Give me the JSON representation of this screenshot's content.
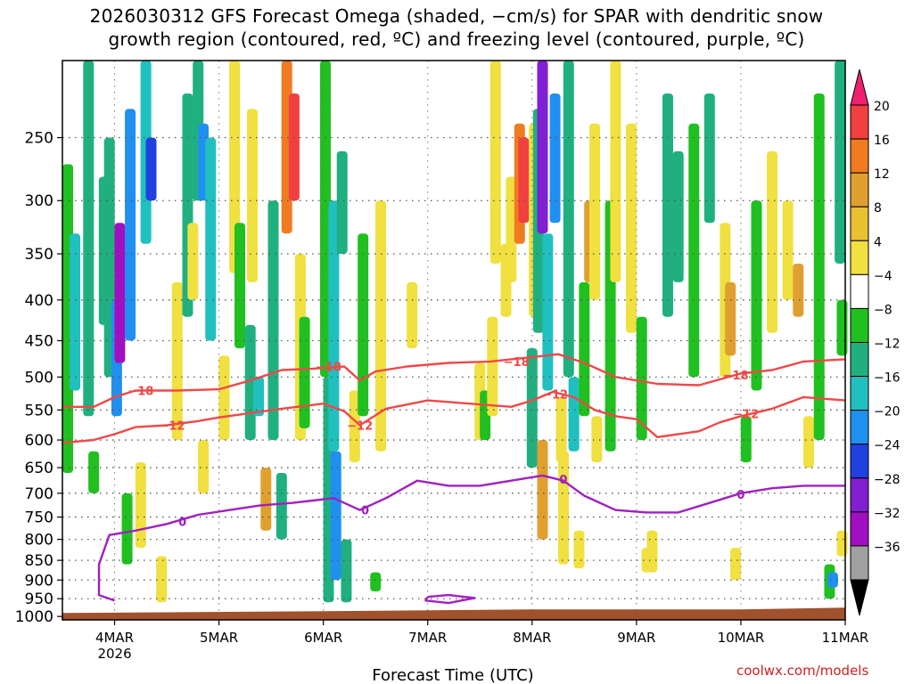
{
  "title": {
    "line1": "2026030312 GFS Forecast Omega (shaded, −cm/s) for SPAR with dendritic snow",
    "line2": "growth region (contoured, red, ºC) and freezing level (contoured, purple, ºC)"
  },
  "credit": "coolwx.com/models",
  "chart_data": {
    "type": "heatmap",
    "title": "2026030312 GFS Forecast Omega (shaded, −cm/s) for SPAR with dendritic snow growth region (contoured, red, ºC) and freezing level (contoured, purple, ºC)",
    "xlabel": "Forecast Time (UTC)",
    "ylabel": "",
    "x_ticks": [
      {
        "day": 4,
        "label": "4MAR",
        "sub": "2026"
      },
      {
        "day": 5,
        "label": "5MAR",
        "sub": ""
      },
      {
        "day": 6,
        "label": "6MAR",
        "sub": ""
      },
      {
        "day": 7,
        "label": "7MAR",
        "sub": ""
      },
      {
        "day": 8,
        "label": "8MAR",
        "sub": ""
      },
      {
        "day": 9,
        "label": "9MAR",
        "sub": ""
      },
      {
        "day": 10,
        "label": "10MAR",
        "sub": ""
      },
      {
        "day": 11,
        "label": "11MAR",
        "sub": ""
      }
    ],
    "xlim_days": [
      3.5,
      11.0
    ],
    "y_levels": [
      250,
      300,
      350,
      400,
      450,
      500,
      550,
      600,
      650,
      700,
      750,
      800,
      850,
      900,
      950,
      1000
    ],
    "ylim_hpa": [
      200,
      1010
    ],
    "colorbar": {
      "labels": [
        "20",
        "16",
        "12",
        "8",
        "4",
        "−4",
        "−8",
        "−12",
        "−16",
        "−20",
        "−24",
        "−28",
        "−32",
        "−36"
      ],
      "colors": [
        "#f02070",
        "#f04040",
        "#f07b20",
        "#e0a030",
        "#e8c030",
        "#f0e040",
        "#ffffff",
        "#20c020",
        "#20b080",
        "#20c0c0",
        "#2090f0",
        "#2040e0",
        "#8020d0",
        "#a010c0",
        "#a0a0a0",
        "#000000"
      ]
    },
    "series": [
      {
        "name": "-18 isotherm",
        "color": "#f04848",
        "label": "−18",
        "points": [
          [
            3.5,
            545
          ],
          [
            3.8,
            545
          ],
          [
            4.0,
            530
          ],
          [
            4.2,
            520
          ],
          [
            4.6,
            520
          ],
          [
            5.0,
            518
          ],
          [
            5.3,
            505
          ],
          [
            5.6,
            490
          ],
          [
            5.9,
            488
          ],
          [
            6.2,
            485
          ],
          [
            6.35,
            505
          ],
          [
            6.5,
            492
          ],
          [
            6.8,
            485
          ],
          [
            7.2,
            480
          ],
          [
            7.6,
            478
          ],
          [
            8.0,
            472
          ],
          [
            8.25,
            468
          ],
          [
            8.5,
            480
          ],
          [
            8.8,
            500
          ],
          [
            9.2,
            510
          ],
          [
            9.6,
            512
          ],
          [
            10.0,
            495
          ],
          [
            10.3,
            490
          ],
          [
            10.6,
            478
          ],
          [
            11.0,
            475
          ]
        ],
        "labels_at": [
          [
            4.25,
            520
          ],
          [
            6.05,
            485
          ],
          [
            7.85,
            478
          ],
          [
            9.95,
            497
          ]
        ]
      },
      {
        "name": "-12 isotherm",
        "color": "#f04848",
        "label": "−12",
        "points": [
          [
            3.5,
            605
          ],
          [
            3.8,
            600
          ],
          [
            4.0,
            590
          ],
          [
            4.2,
            578
          ],
          [
            4.5,
            575
          ],
          [
            4.8,
            568
          ],
          [
            5.0,
            562
          ],
          [
            5.3,
            555
          ],
          [
            5.6,
            548
          ],
          [
            6.0,
            540
          ],
          [
            6.2,
            552
          ],
          [
            6.35,
            575
          ],
          [
            6.6,
            548
          ],
          [
            7.0,
            535
          ],
          [
            7.4,
            540
          ],
          [
            7.8,
            545
          ],
          [
            8.0,
            535
          ],
          [
            8.2,
            522
          ],
          [
            8.4,
            530
          ],
          [
            8.6,
            550
          ],
          [
            8.8,
            560
          ],
          [
            9.0,
            565
          ],
          [
            9.2,
            595
          ],
          [
            9.4,
            590
          ],
          [
            9.6,
            585
          ],
          [
            9.8,
            570
          ],
          [
            10.0,
            560
          ],
          [
            10.3,
            548
          ],
          [
            10.6,
            530
          ],
          [
            11.0,
            535
          ]
        ],
        "labels_at": [
          [
            4.55,
            575
          ],
          [
            6.35,
            575
          ],
          [
            8.22,
            525
          ],
          [
            10.05,
            556
          ]
        ]
      },
      {
        "name": "0 (freezing level)",
        "color": "#a020c0",
        "label": "0",
        "points": [
          [
            4.0,
            955
          ],
          [
            3.85,
            940
          ],
          [
            3.85,
            860
          ],
          [
            3.95,
            790
          ],
          [
            4.2,
            780
          ],
          [
            4.5,
            765
          ],
          [
            4.8,
            745
          ],
          [
            5.1,
            735
          ],
          [
            5.4,
            725
          ],
          [
            5.7,
            720
          ],
          [
            5.9,
            715
          ],
          [
            6.1,
            710
          ],
          [
            6.35,
            735
          ],
          [
            6.6,
            710
          ],
          [
            6.9,
            675
          ],
          [
            7.2,
            685
          ],
          [
            7.5,
            685
          ],
          [
            7.8,
            675
          ],
          [
            8.1,
            665
          ],
          [
            8.3,
            675
          ],
          [
            8.5,
            705
          ],
          [
            8.8,
            735
          ],
          [
            9.1,
            740
          ],
          [
            9.4,
            740
          ],
          [
            9.7,
            720
          ],
          [
            10.0,
            700
          ],
          [
            10.3,
            690
          ],
          [
            10.6,
            685
          ],
          [
            11.0,
            685
          ]
        ],
        "labels_at": [
          [
            4.65,
            760
          ],
          [
            6.4,
            735
          ],
          [
            8.3,
            672
          ],
          [
            10.0,
            702
          ]
        ]
      },
      {
        "name": "0 (closed contour)",
        "color": "#a020c0",
        "label": "",
        "points": [
          [
            7.0,
            945
          ],
          [
            7.2,
            940
          ],
          [
            7.45,
            948
          ],
          [
            7.2,
            962
          ],
          [
            6.98,
            955
          ],
          [
            7.0,
            945
          ]
        ],
        "labels_at": []
      }
    ],
    "shading_cells": [
      {
        "day": 3.55,
        "p1": 270,
        "p2": 660,
        "v": -6
      },
      {
        "day": 3.62,
        "p1": 330,
        "p2": 520,
        "v": -12
      },
      {
        "day": 3.75,
        "p1": 200,
        "p2": 560,
        "v": -8
      },
      {
        "day": 3.8,
        "p1": 620,
        "p2": 700,
        "v": -6
      },
      {
        "day": 3.9,
        "p1": 280,
        "p2": 430,
        "v": -10
      },
      {
        "day": 3.95,
        "p1": 250,
        "p2": 500,
        "v": -8
      },
      {
        "day": 4.02,
        "p1": 400,
        "p2": 560,
        "v": -18
      },
      {
        "day": 4.05,
        "p1": 320,
        "p2": 480,
        "v": -28
      },
      {
        "day": 4.15,
        "p1": 230,
        "p2": 450,
        "v": -16
      },
      {
        "day": 4.12,
        "p1": 700,
        "p2": 860,
        "v": -6
      },
      {
        "day": 4.25,
        "p1": 640,
        "p2": 820,
        "v": 5
      },
      {
        "day": 4.3,
        "p1": 200,
        "p2": 340,
        "v": -12
      },
      {
        "day": 4.35,
        "p1": 250,
        "p2": 300,
        "v": -22
      },
      {
        "day": 4.45,
        "p1": 840,
        "p2": 960,
        "v": 6
      },
      {
        "day": 4.6,
        "p1": 380,
        "p2": 600,
        "v": 5
      },
      {
        "day": 4.7,
        "p1": 220,
        "p2": 420,
        "v": -8
      },
      {
        "day": 4.75,
        "p1": 320,
        "p2": 400,
        "v": 6
      },
      {
        "day": 4.8,
        "p1": 200,
        "p2": 300,
        "v": -10
      },
      {
        "day": 4.85,
        "p1": 600,
        "p2": 700,
        "v": 5
      },
      {
        "day": 4.85,
        "p1": 240,
        "p2": 300,
        "v": -16
      },
      {
        "day": 4.92,
        "p1": 250,
        "p2": 450,
        "v": -12
      },
      {
        "day": 5.05,
        "p1": 470,
        "p2": 600,
        "v": 5
      },
      {
        "day": 5.15,
        "p1": 200,
        "p2": 370,
        "v": 5
      },
      {
        "day": 5.2,
        "p1": 320,
        "p2": 460,
        "v": -6
      },
      {
        "day": 5.32,
        "p1": 230,
        "p2": 380,
        "v": 5
      },
      {
        "day": 5.3,
        "p1": 430,
        "p2": 600,
        "v": -10
      },
      {
        "day": 5.38,
        "p1": 500,
        "p2": 560,
        "v": -14
      },
      {
        "day": 5.45,
        "p1": 650,
        "p2": 780,
        "v": 10
      },
      {
        "day": 5.52,
        "p1": 300,
        "p2": 600,
        "v": -8
      },
      {
        "day": 5.6,
        "p1": 660,
        "p2": 800,
        "v": -8
      },
      {
        "day": 5.65,
        "p1": 200,
        "p2": 330,
        "v": 12
      },
      {
        "day": 5.72,
        "p1": 220,
        "p2": 300,
        "v": 18
      },
      {
        "day": 5.78,
        "p1": 350,
        "p2": 600,
        "v": 5
      },
      {
        "day": 5.82,
        "p1": 420,
        "p2": 580,
        "v": -6
      },
      {
        "day": 6.02,
        "p1": 200,
        "p2": 500,
        "v": -6
      },
      {
        "day": 6.05,
        "p1": 500,
        "p2": 960,
        "v": -10
      },
      {
        "day": 6.1,
        "p1": 300,
        "p2": 620,
        "v": -14
      },
      {
        "day": 6.12,
        "p1": 620,
        "p2": 900,
        "v": -16
      },
      {
        "day": 6.18,
        "p1": 260,
        "p2": 350,
        "v": -8
      },
      {
        "day": 6.22,
        "p1": 800,
        "p2": 960,
        "v": -8
      },
      {
        "day": 6.3,
        "p1": 520,
        "p2": 640,
        "v": 5
      },
      {
        "day": 6.38,
        "p1": 330,
        "p2": 560,
        "v": -6
      },
      {
        "day": 6.55,
        "p1": 300,
        "p2": 620,
        "v": 5
      },
      {
        "day": 6.5,
        "p1": 880,
        "p2": 930,
        "v": -6
      },
      {
        "day": 6.85,
        "p1": 380,
        "p2": 460,
        "v": 5
      },
      {
        "day": 7.5,
        "p1": 480,
        "p2": 600,
        "v": 5
      },
      {
        "day": 7.55,
        "p1": 520,
        "p2": 600,
        "v": -6
      },
      {
        "day": 7.65,
        "p1": 200,
        "p2": 360,
        "v": 5
      },
      {
        "day": 7.62,
        "p1": 420,
        "p2": 560,
        "v": 5
      },
      {
        "day": 7.75,
        "p1": 340,
        "p2": 420,
        "v": 5
      },
      {
        "day": 7.8,
        "p1": 280,
        "p2": 380,
        "v": 5
      },
      {
        "day": 7.88,
        "p1": 240,
        "p2": 340,
        "v": 12
      },
      {
        "day": 7.92,
        "p1": 250,
        "p2": 320,
        "v": 18
      },
      {
        "day": 8.02,
        "p1": 240,
        "p2": 420,
        "v": 5
      },
      {
        "day": 8.0,
        "p1": 460,
        "p2": 650,
        "v": -8
      },
      {
        "day": 8.06,
        "p1": 230,
        "p2": 440,
        "v": -10
      },
      {
        "day": 8.1,
        "p1": 200,
        "p2": 330,
        "v": -24
      },
      {
        "day": 8.1,
        "p1": 600,
        "p2": 800,
        "v": 10
      },
      {
        "day": 8.15,
        "p1": 330,
        "p2": 520,
        "v": -12
      },
      {
        "day": 8.22,
        "p1": 220,
        "p2": 320,
        "v": -18
      },
      {
        "day": 8.28,
        "p1": 530,
        "p2": 640,
        "v": 5
      },
      {
        "day": 8.3,
        "p1": 620,
        "p2": 860,
        "v": 5
      },
      {
        "day": 8.35,
        "p1": 200,
        "p2": 500,
        "v": -8
      },
      {
        "day": 8.4,
        "p1": 500,
        "p2": 620,
        "v": -12
      },
      {
        "day": 8.45,
        "p1": 780,
        "p2": 870,
        "v": 6
      },
      {
        "day": 8.5,
        "p1": 380,
        "p2": 560,
        "v": -6
      },
      {
        "day": 8.55,
        "p1": 300,
        "p2": 380,
        "v": 8
      },
      {
        "day": 8.6,
        "p1": 240,
        "p2": 400,
        "v": 5
      },
      {
        "day": 8.62,
        "p1": 560,
        "p2": 640,
        "v": 5
      },
      {
        "day": 8.75,
        "p1": 300,
        "p2": 620,
        "v": -6
      },
      {
        "day": 8.8,
        "p1": 200,
        "p2": 380,
        "v": 5
      },
      {
        "day": 8.95,
        "p1": 240,
        "p2": 440,
        "v": 5
      },
      {
        "day": 9.05,
        "p1": 420,
        "p2": 600,
        "v": -6
      },
      {
        "day": 9.1,
        "p1": 820,
        "p2": 880,
        "v": 5
      },
      {
        "day": 9.15,
        "p1": 780,
        "p2": 880,
        "v": 6
      },
      {
        "day": 9.3,
        "p1": 220,
        "p2": 420,
        "v": -8
      },
      {
        "day": 9.4,
        "p1": 260,
        "p2": 380,
        "v": -10
      },
      {
        "day": 9.55,
        "p1": 240,
        "p2": 500,
        "v": -6
      },
      {
        "day": 9.7,
        "p1": 220,
        "p2": 320,
        "v": -8
      },
      {
        "day": 9.85,
        "p1": 320,
        "p2": 500,
        "v": 5
      },
      {
        "day": 9.9,
        "p1": 380,
        "p2": 470,
        "v": 8
      },
      {
        "day": 9.95,
        "p1": 820,
        "p2": 900,
        "v": 6
      },
      {
        "day": 10.05,
        "p1": 560,
        "p2": 640,
        "v": -6
      },
      {
        "day": 10.15,
        "p1": 300,
        "p2": 520,
        "v": -6
      },
      {
        "day": 10.3,
        "p1": 260,
        "p2": 440,
        "v": 5
      },
      {
        "day": 10.45,
        "p1": 300,
        "p2": 400,
        "v": 5
      },
      {
        "day": 10.55,
        "p1": 360,
        "p2": 420,
        "v": 10
      },
      {
        "day": 10.65,
        "p1": 560,
        "p2": 650,
        "v": 5
      },
      {
        "day": 10.75,
        "p1": 220,
        "p2": 600,
        "v": -6
      },
      {
        "day": 10.85,
        "p1": 860,
        "p2": 950,
        "v": -6
      },
      {
        "day": 10.88,
        "p1": 880,
        "p2": 920,
        "v": -16
      },
      {
        "day": 10.95,
        "p1": 200,
        "p2": 360,
        "v": -8
      },
      {
        "day": 10.97,
        "p1": 400,
        "p2": 470,
        "v": -6
      },
      {
        "day": 10.97,
        "p1": 780,
        "p2": 840,
        "v": 5
      }
    ]
  }
}
